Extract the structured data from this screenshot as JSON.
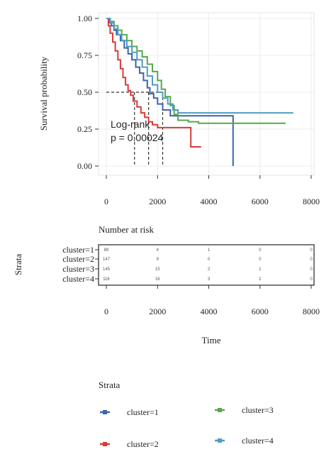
{
  "chart_data": {
    "type": "line",
    "subtype": "kaplan-meier",
    "title": "",
    "ylabel": "Survival probability",
    "xlabel": "Time",
    "xlim": [
      0,
      8000
    ],
    "ylim": [
      0,
      1
    ],
    "x_ticks": [
      "0",
      "2000",
      "4000",
      "6000",
      "8000"
    ],
    "y_ticks": [
      "0.00",
      "0.25",
      "0.50",
      "0.75",
      "1.00"
    ],
    "grid": true,
    "annotation": [
      "Log-rank",
      "p = 0.00024"
    ],
    "median_line": 0.5,
    "median_times": [
      1100,
      1650,
      2200
    ],
    "series": [
      {
        "name": "cluster=1",
        "color": "#3c64a8",
        "points": [
          [
            0,
            1.0
          ],
          [
            100,
            0.97
          ],
          [
            200,
            0.95
          ],
          [
            300,
            0.92
          ],
          [
            400,
            0.89
          ],
          [
            550,
            0.85
          ],
          [
            700,
            0.8
          ],
          [
            850,
            0.76
          ],
          [
            1000,
            0.72
          ],
          [
            1150,
            0.67
          ],
          [
            1300,
            0.63
          ],
          [
            1450,
            0.58
          ],
          [
            1600,
            0.53
          ],
          [
            1700,
            0.49
          ],
          [
            1850,
            0.46
          ],
          [
            2000,
            0.42
          ],
          [
            2200,
            0.38
          ],
          [
            2500,
            0.34
          ],
          [
            3500,
            0.34
          ],
          [
            4950,
            0.34
          ],
          [
            4950,
            0.0
          ]
        ]
      },
      {
        "name": "cluster=2",
        "color": "#d93a36",
        "points": [
          [
            0,
            1.0
          ],
          [
            80,
            0.95
          ],
          [
            150,
            0.9
          ],
          [
            250,
            0.84
          ],
          [
            350,
            0.78
          ],
          [
            450,
            0.72
          ],
          [
            550,
            0.66
          ],
          [
            650,
            0.6
          ],
          [
            750,
            0.55
          ],
          [
            850,
            0.51
          ],
          [
            950,
            0.48
          ],
          [
            1050,
            0.44
          ],
          [
            1200,
            0.4
          ],
          [
            1350,
            0.36
          ],
          [
            1500,
            0.33
          ],
          [
            1650,
            0.3
          ],
          [
            1800,
            0.28
          ],
          [
            2000,
            0.26
          ],
          [
            3300,
            0.26
          ],
          [
            3300,
            0.13
          ],
          [
            3700,
            0.13
          ]
        ]
      },
      {
        "name": "cluster=3",
        "color": "#5aa64a",
        "points": [
          [
            0,
            1.0
          ],
          [
            150,
            0.98
          ],
          [
            300,
            0.95
          ],
          [
            450,
            0.92
          ],
          [
            600,
            0.89
          ],
          [
            800,
            0.85
          ],
          [
            1000,
            0.81
          ],
          [
            1200,
            0.78
          ],
          [
            1400,
            0.74
          ],
          [
            1600,
            0.69
          ],
          [
            1800,
            0.64
          ],
          [
            2000,
            0.58
          ],
          [
            2150,
            0.52
          ],
          [
            2300,
            0.47
          ],
          [
            2500,
            0.41
          ],
          [
            2650,
            0.35
          ],
          [
            2800,
            0.31
          ],
          [
            3200,
            0.3
          ],
          [
            3400,
            0.3
          ],
          [
            3600,
            0.29
          ],
          [
            7000,
            0.29
          ]
        ]
      },
      {
        "name": "cluster=4",
        "color": "#4e9cc4",
        "points": [
          [
            0,
            1.0
          ],
          [
            150,
            0.97
          ],
          [
            300,
            0.93
          ],
          [
            450,
            0.89
          ],
          [
            600,
            0.85
          ],
          [
            800,
            0.81
          ],
          [
            1000,
            0.77
          ],
          [
            1200,
            0.72
          ],
          [
            1400,
            0.67
          ],
          [
            1600,
            0.61
          ],
          [
            1800,
            0.55
          ],
          [
            2000,
            0.5
          ],
          [
            2200,
            0.46
          ],
          [
            2400,
            0.42
          ],
          [
            2600,
            0.38
          ],
          [
            2800,
            0.36
          ],
          [
            3500,
            0.36
          ],
          [
            7300,
            0.36
          ]
        ]
      }
    ]
  },
  "risk_table": {
    "title": "Number at risk",
    "ylabel": "Strata",
    "xlabel": "Time",
    "times": [
      0,
      2000,
      4000,
      6000,
      8000
    ],
    "x_ticks": [
      "0",
      "2000",
      "4000",
      "6000",
      "8000"
    ],
    "rows": [
      {
        "label": "cluster=1",
        "counts": [
          "89",
          "4",
          "1",
          "0",
          "0"
        ]
      },
      {
        "label": "cluster=2",
        "counts": [
          "147",
          "9",
          "0",
          "0",
          "0"
        ]
      },
      {
        "label": "cluster=3",
        "counts": [
          "145",
          "15",
          "2",
          "1",
          "0"
        ]
      },
      {
        "label": "cluster=4",
        "counts": [
          "116",
          "16",
          "3",
          "2",
          "0"
        ]
      }
    ]
  },
  "legend": {
    "title": "Strata",
    "items": [
      {
        "label": "cluster=1",
        "color": "#3c64a8"
      },
      {
        "label": "cluster=2",
        "color": "#d93a36"
      },
      {
        "label": "cluster=3",
        "color": "#5aa64a"
      },
      {
        "label": "cluster=4",
        "color": "#4e9cc4"
      }
    ]
  }
}
